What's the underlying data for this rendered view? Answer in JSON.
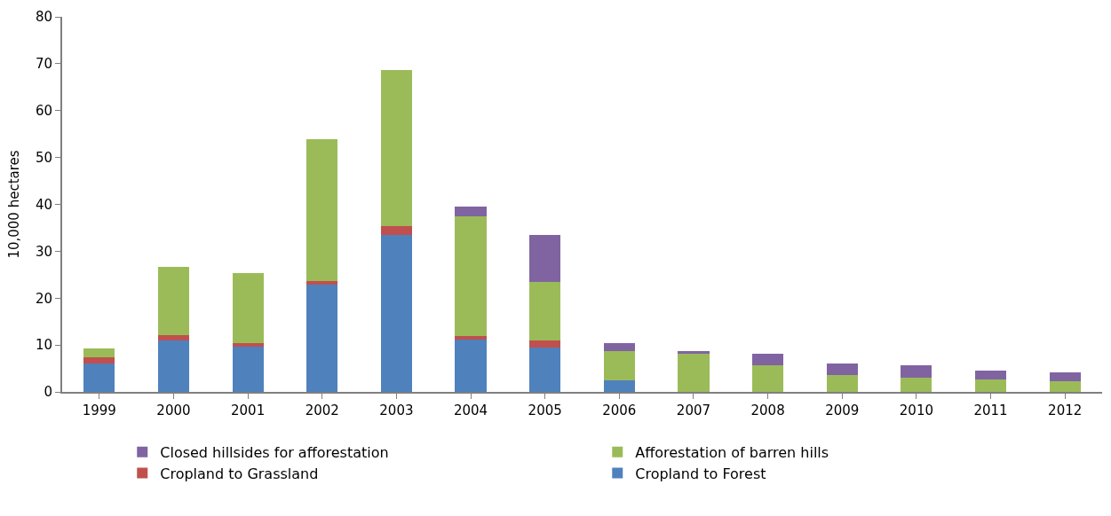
{
  "chart_data": {
    "type": "bar",
    "stacked": true,
    "ylabel": "10,000 hectares",
    "categories": [
      "1999",
      "2000",
      "2001",
      "2002",
      "2003",
      "2004",
      "2005",
      "2006",
      "2007",
      "2008",
      "2009",
      "2010",
      "2011",
      "2012"
    ],
    "series": [
      {
        "name": "Cropland to Forest",
        "color": "#4f81bd",
        "values": [
          6.1,
          11.0,
          9.7,
          22.8,
          33.5,
          11.1,
          9.5,
          2.5,
          null,
          null,
          null,
          null,
          null,
          null
        ]
      },
      {
        "name": "Cropland to Grassland",
        "color": "#c0504d",
        "values": [
          1.2,
          1.1,
          0.7,
          0.9,
          1.9,
          0.9,
          1.4,
          null,
          null,
          null,
          null,
          null,
          null,
          null
        ]
      },
      {
        "name": "Afforestation of barren hills",
        "color": "#9bbb59",
        "values": [
          2.0,
          14.5,
          14.9,
          30.2,
          33.2,
          25.5,
          12.6,
          6.2,
          8.2,
          5.6,
          3.5,
          3.1,
          2.7,
          2.2
        ]
      },
      {
        "name": "Closed hillsides for afforestation",
        "color": "#8064a2",
        "values": [
          null,
          null,
          null,
          null,
          null,
          2.0,
          10.0,
          1.7,
          0.5,
          2.6,
          2.5,
          2.5,
          1.8,
          2.0
        ]
      }
    ],
    "ylim": [
      0,
      80
    ],
    "yticks": [
      0,
      10,
      20,
      30,
      40,
      50,
      60,
      70,
      80
    ],
    "legend": "bottom"
  }
}
